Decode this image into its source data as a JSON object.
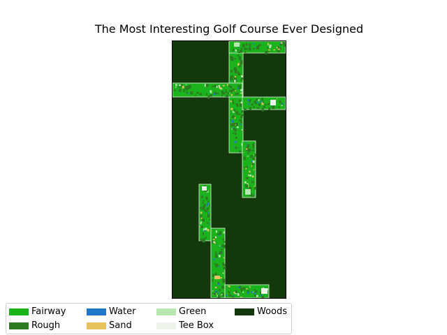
{
  "title": "The Most Interesting Golf Course Ever Designed",
  "colors": {
    "fairway": "#1bb31b",
    "rough": "#2d7a22",
    "water": "#1f78c8",
    "sand": "#e6c35c",
    "green": "#b7e6b0",
    "tee_box": "#edf2ea",
    "woods": "#13380c"
  },
  "legend": [
    {
      "label": "Fairway",
      "color": "#1bb31b"
    },
    {
      "label": "Water",
      "color": "#1f78c8"
    },
    {
      "label": "Green",
      "color": "#b7e6b0"
    },
    {
      "label": "Woods",
      "color": "#13380c"
    },
    {
      "label": "Rough",
      "color": "#2d7a22"
    },
    {
      "label": "Sand",
      "color": "#e6c35c"
    },
    {
      "label": "Tee Box",
      "color": "#edf2ea"
    }
  ]
}
